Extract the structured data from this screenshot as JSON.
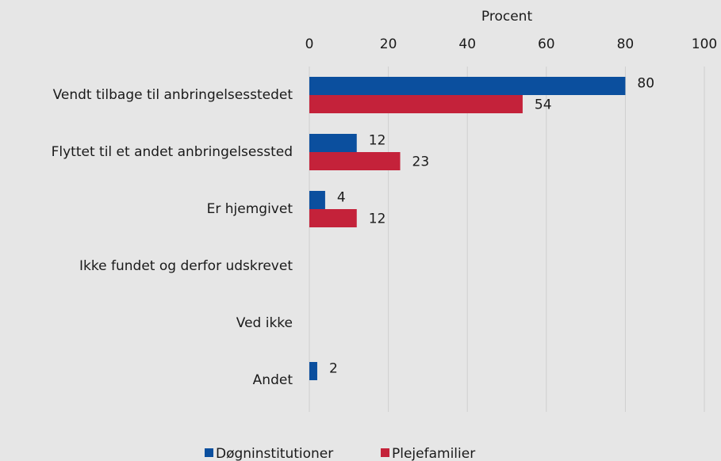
{
  "chart_data": {
    "type": "bar",
    "orientation": "horizontal",
    "xlabel": "Procent",
    "categories": [
      "Vendt tilbage til anbringelsesstedet",
      "Flyttet til et andet anbringelsessted",
      "Er hjemgivet",
      "Ikke fundet og derfor udskrevet",
      "Ved ikke",
      "Andet"
    ],
    "series": [
      {
        "name": "Døgninstitutioner",
        "color": "#0b4f9e",
        "values": [
          80,
          12,
          4,
          null,
          null,
          2
        ]
      },
      {
        "name": "Plejefamilier",
        "color": "#c4223a",
        "values": [
          54,
          23,
          12,
          null,
          null,
          null
        ]
      }
    ],
    "xlim": [
      0,
      100
    ],
    "xticks": [
      0,
      20,
      40,
      60,
      80,
      100
    ],
    "grid": true,
    "legend": "bottom"
  }
}
